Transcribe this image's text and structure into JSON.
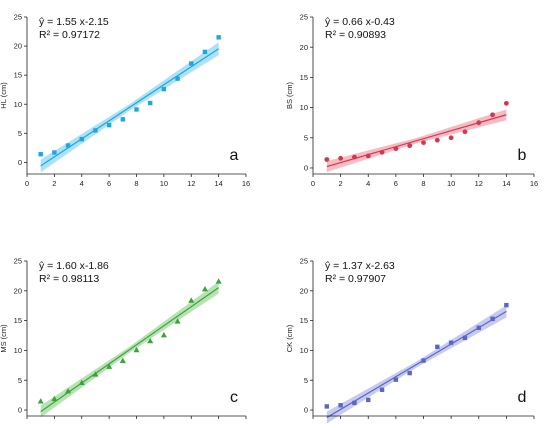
{
  "chart_data": [
    {
      "type": "scatter",
      "panel_letter": "a",
      "ylabel": "HL (cm)",
      "xlabel": "",
      "equation": "ŷ = 1.55 x-2.15",
      "r2_text": "R² = 0.97172",
      "xlim": [
        0,
        16
      ],
      "ylim": [
        -2,
        25
      ],
      "xticks": [
        0,
        2,
        4,
        6,
        8,
        10,
        12,
        14,
        16
      ],
      "yticks": [
        0,
        5,
        10,
        15,
        20,
        25
      ],
      "color": "#1ea6e0",
      "band_color": "#8fd8f6",
      "marker": "square",
      "fit": {
        "slope": 1.55,
        "intercept": -2.15,
        "band_halfwidth": [
          1.1,
          0.55,
          1.1
        ]
      },
      "x": [
        1,
        2,
        3,
        4,
        5,
        6,
        7,
        8,
        9,
        10,
        11,
        12,
        13,
        14
      ],
      "y": [
        1.4,
        1.7,
        2.9,
        4.0,
        5.5,
        6.4,
        7.4,
        9.1,
        10.2,
        12.6,
        14.4,
        17.0,
        19.0,
        21.5
      ]
    },
    {
      "type": "scatter",
      "panel_letter": "b",
      "ylabel": "BS (cm)",
      "xlabel": "",
      "equation": "ŷ = 0.66 x-0.43",
      "r2_text": "R² = 0.90893",
      "xlim": [
        0,
        16
      ],
      "ylim": [
        -1,
        25
      ],
      "xticks": [
        0,
        2,
        4,
        6,
        8,
        10,
        12,
        14,
        16
      ],
      "yticks": [
        0,
        5,
        10,
        15,
        20,
        25
      ],
      "color": "#d6364f",
      "band_color": "#f2a6b0",
      "marker": "circle",
      "fit": {
        "slope": 0.66,
        "intercept": -0.43,
        "band_halfwidth": [
          0.9,
          0.45,
          0.9
        ]
      },
      "x": [
        1,
        2,
        3,
        4,
        5,
        6,
        7,
        8,
        9,
        10,
        11,
        12,
        13,
        14
      ],
      "y": [
        1.4,
        1.6,
        1.8,
        2.0,
        2.6,
        3.2,
        3.7,
        4.2,
        4.6,
        5.0,
        6.0,
        7.5,
        8.8,
        10.7
      ]
    },
    {
      "type": "scatter",
      "panel_letter": "c",
      "ylabel": "MS (cm)",
      "xlabel": "",
      "equation": "ŷ = 1.60 x-1.86",
      "r2_text": "R² = 0.98113",
      "xlim": [
        0,
        16
      ],
      "ylim": [
        -1,
        25
      ],
      "xticks": [
        0,
        2,
        4,
        6,
        8,
        10,
        12,
        14,
        16
      ],
      "yticks": [
        0,
        5,
        10,
        15,
        20,
        25
      ],
      "color": "#3aa33a",
      "band_color": "#9fd99a",
      "marker": "triangle",
      "fit": {
        "slope": 1.6,
        "intercept": -1.86,
        "band_halfwidth": [
          1.0,
          0.5,
          1.0
        ]
      },
      "x": [
        1,
        2,
        3,
        4,
        5,
        6,
        7,
        8,
        9,
        10,
        11,
        12,
        13,
        14
      ],
      "y": [
        1.5,
        1.9,
        3.2,
        4.6,
        6.0,
        7.3,
        8.3,
        10.1,
        11.6,
        12.6,
        14.9,
        18.4,
        20.3,
        21.6
      ]
    },
    {
      "type": "scatter",
      "panel_letter": "d",
      "ylabel": "CK (cm)",
      "xlabel": "",
      "equation": "ŷ = 1.37 x-2.63",
      "r2_text": "R² = 0.97907",
      "xlim": [
        0,
        16
      ],
      "ylim": [
        -1,
        25
      ],
      "xticks": [
        0,
        2,
        4,
        6,
        8,
        10,
        12,
        14,
        16
      ],
      "yticks": [
        0,
        5,
        10,
        15,
        20,
        25
      ],
      "color": "#5a66c4",
      "band_color": "#b3b9ea",
      "marker": "square",
      "fit": {
        "slope": 1.37,
        "intercept": -2.63,
        "band_halfwidth": [
          1.0,
          0.5,
          1.0
        ]
      },
      "x": [
        1,
        2,
        3,
        4,
        5,
        6,
        7,
        8,
        9,
        10,
        11,
        12,
        13,
        14
      ],
      "y": [
        0.6,
        0.8,
        1.2,
        1.7,
        3.4,
        5.1,
        6.2,
        8.3,
        10.6,
        11.3,
        12.1,
        13.8,
        15.3,
        17.6
      ]
    }
  ]
}
